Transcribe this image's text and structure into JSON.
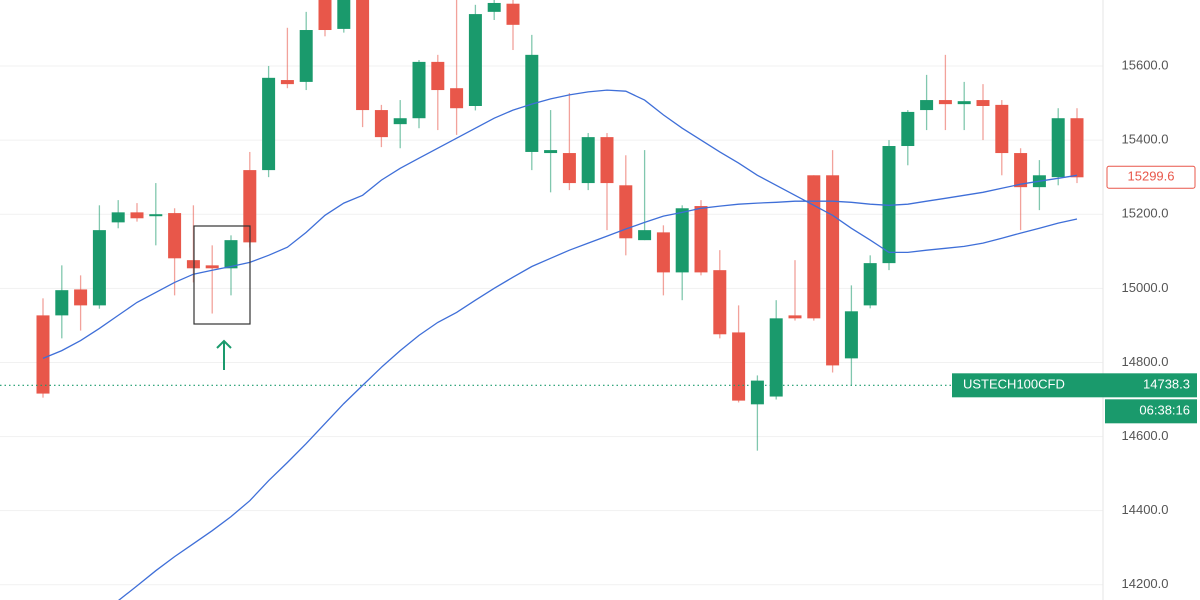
{
  "chart_data": {
    "type": "candlestick",
    "symbol": "USTECH100CFD",
    "up_color": "#1a9a6c",
    "down_color": "#e8574a",
    "open": [
      14927,
      14927,
      14997,
      14954,
      15178,
      15205,
      15195,
      15203,
      15076,
      15062,
      15054,
      15319,
      15319,
      15562,
      15557,
      15800,
      15700,
      15790,
      15481,
      15443,
      15459,
      15611,
      15540,
      15492,
      15746,
      15768,
      15368,
      15365,
      15365,
      15284,
      15408,
      15278,
      15130,
      15151,
      15043,
      15222,
      15049,
      14881,
      14687,
      14708,
      14927,
      15305,
      15305,
      14811,
      14954,
      15068,
      15384,
      15481,
      15508,
      15497,
      15508,
      15495,
      15365,
      15273,
      15300,
      15459
    ],
    "high": [
      14973,
      15062,
      15035,
      15224,
      15238,
      15230,
      15284,
      15216,
      15224,
      15116,
      15143,
      15368,
      15600,
      15703,
      15746,
      15830,
      15830,
      15800,
      15495,
      15508,
      15616,
      15630,
      15778,
      15765,
      15778,
      15778,
      15684,
      15481,
      15527,
      15419,
      15419,
      15359,
      15373,
      15170,
      15224,
      15238,
      15103,
      14954,
      14765,
      14968,
      15076,
      15305,
      15373,
      15008,
      15089,
      15400,
      15481,
      15576,
      15630,
      15557,
      15551,
      15508,
      15378,
      15346,
      15486,
      15486
    ],
    "low": [
      14705,
      14865,
      14886,
      14945,
      15162,
      15180,
      15116,
      14981,
      15016,
      14932,
      14981,
      15110,
      15300,
      15540,
      15535,
      15680,
      15690,
      15435,
      15381,
      15378,
      15432,
      15427,
      15414,
      15480,
      15724,
      15643,
      15319,
      15259,
      15265,
      15265,
      15157,
      15089,
      15130,
      14981,
      14968,
      15035,
      14865,
      14692,
      14562,
      14700,
      14913,
      14913,
      14773,
      14738,
      14946,
      15049,
      15332,
      15427,
      15427,
      15427,
      15400,
      15305,
      15157,
      15211,
      15278,
      15284
    ],
    "close": [
      14716,
      14995,
      14954,
      15157,
      15205,
      15189,
      15200,
      15081,
      15054,
      15054,
      15130,
      15124,
      15568,
      15551,
      15697,
      15697,
      15800,
      15481,
      15408,
      15459,
      15611,
      15535,
      15486,
      15740,
      15770,
      15711,
      15630,
      15373,
      15284,
      15408,
      15284,
      15135,
      15157,
      15043,
      15216,
      15043,
      14876,
      14697,
      14751,
      14919,
      14919,
      14919,
      14792,
      14938,
      15068,
      15384,
      15476,
      15508,
      15497,
      15505,
      15492,
      15365,
      15273,
      15305,
      15459,
      15299.6
    ],
    "moving_averages": [
      {
        "color": "#3f6fd8",
        "values": [
          14811,
          14832,
          14859,
          14892,
          14927,
          14962,
          14989,
          15016,
          15038,
          15049,
          15059,
          15070,
          15089,
          15111,
          15151,
          15197,
          15230,
          15251,
          15292,
          15324,
          15351,
          15378,
          15405,
          15432,
          15459,
          15481,
          15497,
          15511,
          15522,
          15530,
          15535,
          15532,
          15508,
          15468,
          15432,
          15400,
          15368,
          15338,
          15305,
          15278,
          15251,
          15224,
          15197,
          15162,
          15130,
          15097,
          15097,
          15103,
          15108,
          15113,
          15122,
          15135,
          15149,
          15162,
          15176,
          15187
        ]
      },
      {
        "color": "#3f6fd8",
        "values": [
          null,
          null,
          null,
          null,
          14157,
          14197,
          14238,
          14276,
          14311,
          14346,
          14384,
          14427,
          14481,
          14530,
          14581,
          14635,
          14689,
          14738,
          14787,
          14832,
          14873,
          14908,
          14935,
          14968,
          15000,
          15030,
          15059,
          15081,
          15103,
          15122,
          15141,
          15160,
          15178,
          15195,
          15205,
          15216,
          15222,
          15227,
          15230,
          15232,
          15235,
          15235,
          15235,
          15232,
          15227,
          15224,
          15227,
          15235,
          15243,
          15251,
          15259,
          15270,
          15281,
          15289,
          15297,
          15305
        ]
      }
    ],
    "ylim": [
      14159,
      15778
    ],
    "yticks": [
      {
        "value": 14200,
        "label": "14200.0"
      },
      {
        "value": 14400,
        "label": "14400.0"
      },
      {
        "value": 14600,
        "label": "14600.0"
      },
      {
        "value": 14800,
        "label": "14800.0"
      },
      {
        "value": 15000,
        "label": "15000.0"
      },
      {
        "value": 15200,
        "label": "15200.0"
      },
      {
        "value": 15400,
        "label": "15400.0"
      },
      {
        "value": 15600,
        "label": "15600.0"
      }
    ],
    "grid": true,
    "last_price": 15299.6,
    "current_price": 14738.3,
    "countdown": "06:38:16"
  }
}
